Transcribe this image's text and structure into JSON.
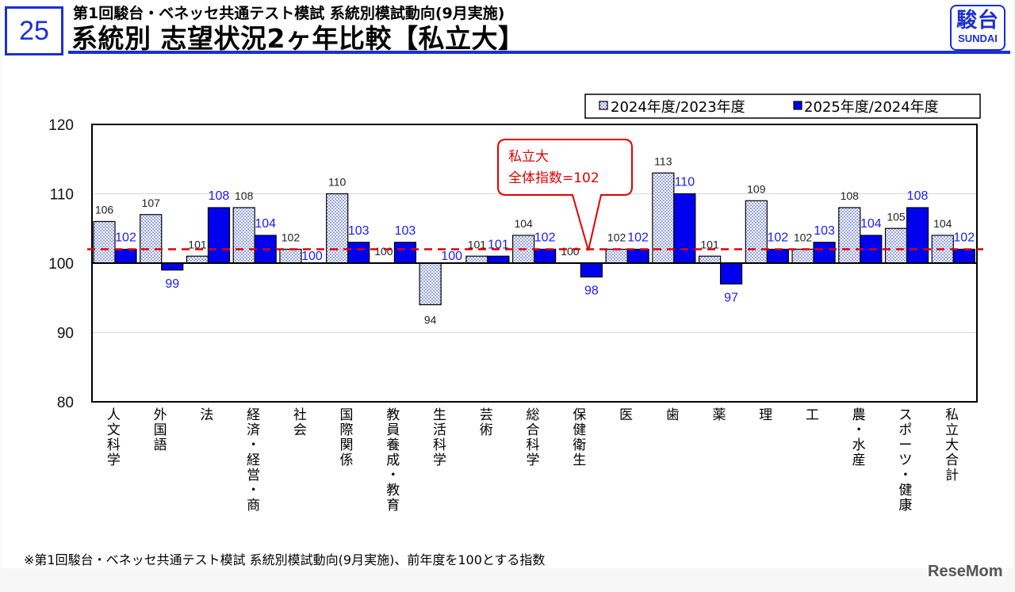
{
  "header": {
    "page_number": "25",
    "subtitle": "第1回駿台・ベネッセ共通テスト模試 系統別模試動向(9月実施)",
    "title": "系統別 志望状況2ヶ年比較【私立大】",
    "logo_kanji": "駿台",
    "logo_roman": "SUNDAI"
  },
  "footnote": "※第1回駿台・ベネッセ共通テスト模試 系統別模試動向(9月実施)、前年度を100とする指数",
  "credit": "ReseMom",
  "callout": {
    "line1": "私立大",
    "line2": "全体指数=102"
  },
  "colors": {
    "brand": "#1a2fd6",
    "series2025": "#0000ee",
    "reference": "#e00000"
  },
  "chart_data": {
    "type": "bar",
    "ylim": [
      80,
      120
    ],
    "yticks": [
      80,
      90,
      100,
      110,
      120
    ],
    "baseline": 100,
    "reference_line": 102,
    "legend_position": "top-right",
    "categories": [
      "人文科学",
      "外国語",
      "法",
      "経済・経営・商",
      "社会",
      "国際関係",
      "教員養成・教育",
      "生活科学",
      "芸術",
      "総合科学",
      "保健衛生",
      "医",
      "歯",
      "薬",
      "理",
      "工",
      "農・水産",
      "スポーツ・健康",
      "私立大合計"
    ],
    "series": [
      {
        "name": "2024年度/2023年度",
        "values": [
          106,
          107,
          101,
          108,
          102,
          110,
          100,
          94,
          101,
          104,
          100,
          102,
          113,
          101,
          109,
          102,
          108,
          105,
          104
        ]
      },
      {
        "name": "2025年度/2024年度",
        "values": [
          102,
          99,
          108,
          104,
          100,
          103,
          103,
          100,
          101,
          102,
          98,
          102,
          110,
          97,
          102,
          103,
          104,
          108,
          102
        ]
      }
    ]
  }
}
